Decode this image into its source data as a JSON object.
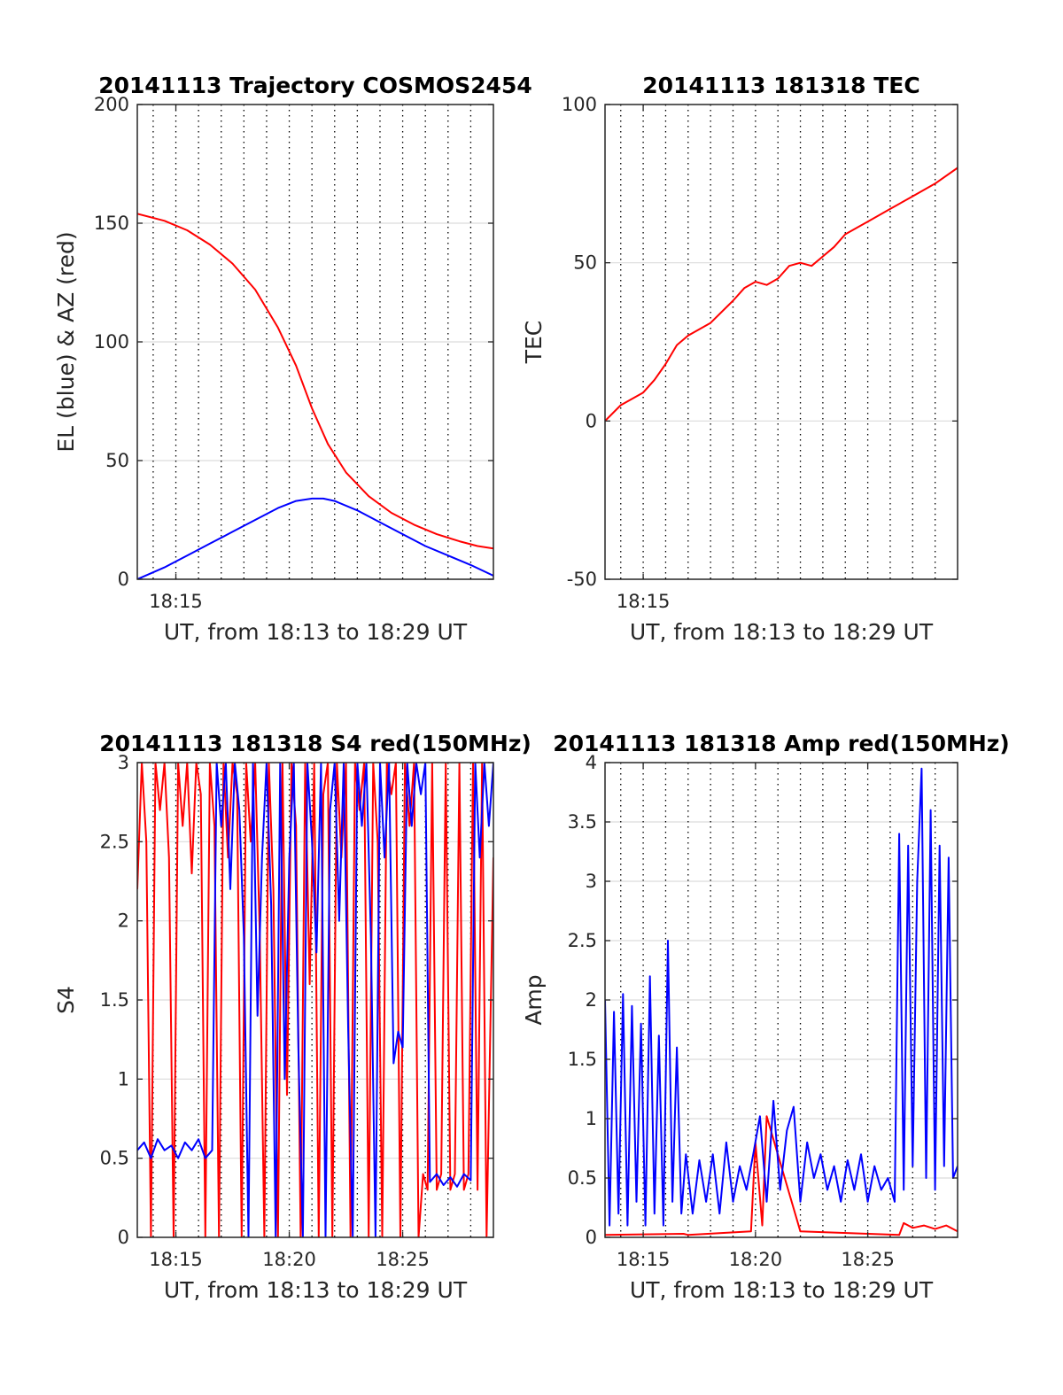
{
  "chart_data": [
    {
      "type": "line",
      "title": "20141113 Trajectory COSMOS2454",
      "xlabel": "UT, from 18:13 to 18:29 UT",
      "ylabel": "EL (blue) & AZ (red)",
      "xlim": [
        13.3,
        29.0
      ],
      "ylim": [
        0,
        200
      ],
      "yticks": [
        0,
        50,
        100,
        150,
        200
      ],
      "xticks": [
        {
          "value": 15,
          "label": "18:15"
        }
      ],
      "grid": {
        "y": true,
        "x_dotted_every_minute": true
      },
      "series": [
        {
          "color": "#ff0000",
          "x": [
            13.3,
            14.5,
            15.5,
            16.5,
            17.5,
            18.5,
            19.5,
            20.3,
            21.0,
            21.7,
            22.5,
            23.5,
            24.5,
            25.5,
            26.5,
            27.5,
            28.3,
            29.0
          ],
          "y": [
            154,
            151,
            147,
            141,
            133,
            122,
            106,
            90,
            72,
            57,
            45,
            35,
            28,
            23,
            19,
            16,
            14,
            13
          ]
        },
        {
          "color": "#0000ff",
          "x": [
            13.3,
            14.5,
            15.5,
            16.5,
            17.5,
            18.5,
            19.5,
            20.3,
            21.0,
            21.5,
            22.0,
            23.0,
            24.0,
            25.0,
            26.0,
            27.0,
            28.0,
            29.0
          ],
          "y": [
            0,
            5,
            10,
            15,
            20,
            25,
            30,
            33,
            34,
            34,
            33,
            29,
            24,
            19,
            14,
            10,
            6,
            1.5
          ]
        }
      ]
    },
    {
      "type": "line",
      "title": "20141113 181318 TEC",
      "xlabel": "UT, from 18:13 to 18:29 UT",
      "ylabel": "TEC",
      "xlim": [
        13.3,
        29.0
      ],
      "ylim": [
        -50,
        100
      ],
      "yticks": [
        -50,
        0,
        50,
        100
      ],
      "xticks": [
        {
          "value": 15,
          "label": "18:15"
        }
      ],
      "grid": {
        "y": true,
        "x_dotted_every_minute": true
      },
      "series": [
        {
          "color": "#ff0000",
          "x": [
            13.3,
            14.0,
            15.0,
            15.5,
            16.0,
            16.5,
            17.0,
            18.0,
            19.0,
            19.5,
            20.0,
            20.5,
            21.0,
            21.5,
            22.0,
            22.5,
            23.0,
            23.5,
            24.0,
            25.0,
            26.0,
            27.0,
            28.0,
            29.0
          ],
          "y": [
            0,
            5,
            9,
            13,
            18,
            24,
            27,
            31,
            38,
            42,
            44,
            43,
            45,
            49,
            50,
            49,
            52,
            55,
            59,
            63,
            67,
            71,
            75,
            80
          ]
        }
      ]
    },
    {
      "type": "line",
      "title": "20141113 181318 S4 red(150MHz)",
      "xlabel": "UT, from 18:13 to 18:29 UT",
      "ylabel": "S4",
      "xlim": [
        13.3,
        29.0
      ],
      "ylim": [
        0,
        3
      ],
      "yticks": [
        0,
        0.5,
        1,
        1.5,
        2,
        2.5,
        3
      ],
      "xticks": [
        {
          "value": 15,
          "label": "18:15"
        },
        {
          "value": 20,
          "label": "18:20"
        },
        {
          "value": 25,
          "label": "18:25"
        }
      ],
      "grid": {
        "y": true,
        "x_dotted_every_minute": true
      },
      "series": [
        {
          "color": "#ff0000",
          "x": [
            13.3,
            13.5,
            13.7,
            13.9,
            14.1,
            14.3,
            14.5,
            14.7,
            14.9,
            15.1,
            15.3,
            15.5,
            15.7,
            15.9,
            16.1,
            16.3,
            16.5,
            16.7,
            16.9,
            17.1,
            17.3,
            17.5,
            17.7,
            17.9,
            18.1,
            18.3,
            18.5,
            18.7,
            18.9,
            19.1,
            19.3,
            19.5,
            19.7,
            19.9,
            20.1,
            20.3,
            20.5,
            20.7,
            20.9,
            21.1,
            21.3,
            21.5,
            21.7,
            21.9,
            22.1,
            22.3,
            22.5,
            22.7,
            22.9,
            23.1,
            23.3,
            23.5,
            23.7,
            23.9,
            24.1,
            24.3,
            24.5,
            24.7,
            24.9,
            25.1,
            25.3,
            25.5,
            25.7,
            25.9,
            26.1,
            26.3,
            26.5,
            26.7,
            26.9,
            27.1,
            27.3,
            27.5,
            27.7,
            27.9,
            28.1,
            28.3,
            28.5,
            28.7,
            29.0
          ],
          "y": [
            2.2,
            3.0,
            2.5,
            0.0,
            3.0,
            2.7,
            3.0,
            2.4,
            0.0,
            3.0,
            2.6,
            3.0,
            2.3,
            3.0,
            2.8,
            0.0,
            3.0,
            2.6,
            0.0,
            3.0,
            2.4,
            3.0,
            2.8,
            0.0,
            3.0,
            2.5,
            3.0,
            1.9,
            0.0,
            3.0,
            2.2,
            0.0,
            3.0,
            0.9,
            3.0,
            2.6,
            0.0,
            3.0,
            1.6,
            3.0,
            0.0,
            2.8,
            3.0,
            0.0,
            3.0,
            2.4,
            3.0,
            0.0,
            3.0,
            2.7,
            3.0,
            0.0,
            3.0,
            2.5,
            0.0,
            3.0,
            2.8,
            3.0,
            0.0,
            3.0,
            2.6,
            3.0,
            0.0,
            0.4,
            0.3,
            3.0,
            0.3,
            0.4,
            3.0,
            0.3,
            0.4,
            3.0,
            0.3,
            0.4,
            3.0,
            0.3,
            3.0,
            0.0,
            2.4
          ]
        },
        {
          "color": "#0000ff",
          "x": [
            13.3,
            13.6,
            13.9,
            14.2,
            14.5,
            14.8,
            15.1,
            15.4,
            15.7,
            16.0,
            16.3,
            16.6,
            16.8,
            17.0,
            17.2,
            17.4,
            17.6,
            17.8,
            18.0,
            18.2,
            18.4,
            18.6,
            18.8,
            19.0,
            19.2,
            19.4,
            19.6,
            19.8,
            20.0,
            20.2,
            20.4,
            20.6,
            20.8,
            21.0,
            21.2,
            21.4,
            21.6,
            21.8,
            22.0,
            22.2,
            22.4,
            22.6,
            22.8,
            23.0,
            23.2,
            23.4,
            23.6,
            23.8,
            24.0,
            24.2,
            24.4,
            24.6,
            24.8,
            25.0,
            25.2,
            25.4,
            25.6,
            25.8,
            26.0,
            26.2,
            26.5,
            26.8,
            27.1,
            27.4,
            27.7,
            28.0,
            28.2,
            28.4,
            28.6,
            28.8,
            29.0
          ],
          "y": [
            0.55,
            0.6,
            0.5,
            0.62,
            0.55,
            0.58,
            0.5,
            0.6,
            0.55,
            0.62,
            0.5,
            0.55,
            3.0,
            2.6,
            3.0,
            2.2,
            3.0,
            2.7,
            1.9,
            0.0,
            3.0,
            1.4,
            2.4,
            3.0,
            2.1,
            0.0,
            3.0,
            1.0,
            2.4,
            3.0,
            1.2,
            0.0,
            3.0,
            2.5,
            1.8,
            3.0,
            0.0,
            2.7,
            3.0,
            2.0,
            3.0,
            1.3,
            0.0,
            3.0,
            2.6,
            3.0,
            1.9,
            0.0,
            3.0,
            2.4,
            3.0,
            1.1,
            1.3,
            1.2,
            3.0,
            2.6,
            3.0,
            2.8,
            3.0,
            0.35,
            0.4,
            0.33,
            0.38,
            0.32,
            0.4,
            0.36,
            3.0,
            2.4,
            3.0,
            2.6,
            3.0
          ]
        }
      ]
    },
    {
      "type": "line",
      "title": "20141113 181318 Amp red(150MHz)",
      "xlabel": "UT, from 18:13 to 18:29 UT",
      "ylabel": "Amp",
      "xlim": [
        13.3,
        29.0
      ],
      "ylim": [
        0,
        4
      ],
      "yticks": [
        0,
        0.5,
        1,
        1.5,
        2,
        2.5,
        3,
        3.5,
        4
      ],
      "xticks": [
        {
          "value": 15,
          "label": "18:15"
        },
        {
          "value": 20,
          "label": "18:20"
        },
        {
          "value": 25,
          "label": "18:25"
        }
      ],
      "grid": {
        "y": true,
        "x_dotted_every_minute": true
      },
      "series": [
        {
          "color": "#ff0000",
          "x": [
            13.3,
            16.8,
            17.0,
            19.8,
            20.0,
            20.3,
            20.5,
            22.0,
            26.4,
            26.6,
            27.0,
            27.5,
            28.0,
            28.5,
            29.0
          ],
          "y": [
            0.02,
            0.03,
            0.02,
            0.05,
            0.8,
            0.1,
            1.02,
            0.05,
            0.02,
            0.12,
            0.08,
            0.1,
            0.07,
            0.1,
            0.05
          ]
        },
        {
          "color": "#0000ff",
          "x": [
            13.3,
            13.5,
            13.7,
            13.9,
            14.1,
            14.3,
            14.5,
            14.7,
            14.9,
            15.1,
            15.3,
            15.5,
            15.7,
            15.9,
            16.1,
            16.3,
            16.5,
            16.7,
            16.9,
            17.2,
            17.5,
            17.8,
            18.1,
            18.4,
            18.7,
            19.0,
            19.3,
            19.6,
            19.9,
            20.2,
            20.5,
            20.8,
            21.1,
            21.4,
            21.7,
            22.0,
            22.3,
            22.6,
            22.9,
            23.2,
            23.5,
            23.8,
            24.1,
            24.4,
            24.7,
            25.0,
            25.3,
            25.6,
            25.9,
            26.2,
            26.4,
            26.6,
            26.8,
            27.0,
            27.2,
            27.4,
            27.6,
            27.8,
            28.0,
            28.2,
            28.4,
            28.6,
            28.8,
            29.0
          ],
          "y": [
            2.0,
            0.1,
            1.9,
            0.2,
            2.05,
            0.1,
            1.95,
            0.3,
            1.8,
            0.1,
            2.2,
            0.2,
            1.7,
            0.1,
            2.5,
            0.3,
            1.6,
            0.2,
            0.7,
            0.2,
            0.65,
            0.3,
            0.7,
            0.2,
            0.8,
            0.3,
            0.6,
            0.4,
            0.7,
            1.02,
            0.3,
            1.15,
            0.4,
            0.9,
            1.1,
            0.3,
            0.8,
            0.5,
            0.7,
            0.4,
            0.6,
            0.3,
            0.65,
            0.4,
            0.7,
            0.3,
            0.6,
            0.4,
            0.5,
            0.3,
            3.4,
            0.4,
            3.3,
            0.6,
            3.0,
            3.95,
            0.5,
            3.6,
            0.4,
            3.3,
            0.6,
            3.2,
            0.5,
            0.6
          ]
        }
      ]
    }
  ]
}
